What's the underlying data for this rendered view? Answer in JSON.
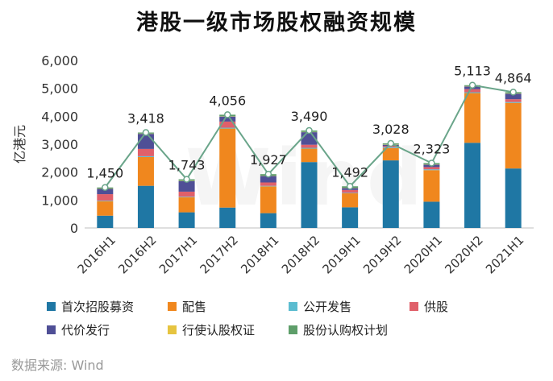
{
  "chart_data": {
    "type": "bar",
    "title": "港股一级市场股权融资规模",
    "ylabel": "亿港元",
    "xlabel": "",
    "ylim": [
      0,
      6000
    ],
    "yticks": [
      "0",
      "1,000",
      "2,000",
      "3,000",
      "4,000",
      "5,000",
      "6,000"
    ],
    "categories": [
      "2016H1",
      "2016H2",
      "2017H1",
      "2017H2",
      "2018H1",
      "2018H2",
      "2019H1",
      "2019H2",
      "2020H1",
      "2020H2",
      "2021H1"
    ],
    "stacked": true,
    "series": [
      {
        "name": "首次招股募资",
        "color": "#1f77a4",
        "values": [
          440,
          1510,
          560,
          730,
          530,
          2360,
          740,
          2420,
          940,
          3050,
          2130
        ]
      },
      {
        "name": "配售",
        "color": "#f0871e",
        "values": [
          520,
          1030,
          540,
          2830,
          960,
          480,
          500,
          440,
          1130,
          1780,
          2350
        ]
      },
      {
        "name": "公开发售",
        "color": "#5bbcd0",
        "values": [
          20,
          30,
          20,
          30,
          20,
          30,
          20,
          30,
          30,
          30,
          30
        ]
      },
      {
        "name": "供股",
        "color": "#e0606a",
        "values": [
          230,
          260,
          180,
          220,
          120,
          110,
          100,
          40,
          80,
          110,
          100
        ]
      },
      {
        "name": "代价发行",
        "color": "#4f4f96",
        "values": [
          190,
          540,
          380,
          180,
          230,
          450,
          70,
          50,
          90,
          100,
          200
        ]
      },
      {
        "name": "行使认股权证",
        "color": "#e6c440",
        "values": [
          10,
          10,
          10,
          10,
          10,
          10,
          10,
          10,
          10,
          10,
          10
        ]
      },
      {
        "name": "股份认购权计划",
        "color": "#5e9e6a",
        "values": [
          40,
          38,
          53,
          56,
          57,
          50,
          52,
          38,
          43,
          33,
          44
        ]
      }
    ],
    "total_line": {
      "color": "#6aa58a",
      "values": [
        1450,
        3418,
        1743,
        4056,
        1927,
        3490,
        1492,
        3028,
        2323,
        5113,
        4864
      ],
      "labels": [
        "1,450",
        "3,418",
        "1,743",
        "4,056",
        "1,927",
        "3,490",
        "1,492",
        "3,028",
        "2,323",
        "5,113",
        "4,864"
      ]
    }
  },
  "source": "数据来源: Wind",
  "watermark": "Wind"
}
